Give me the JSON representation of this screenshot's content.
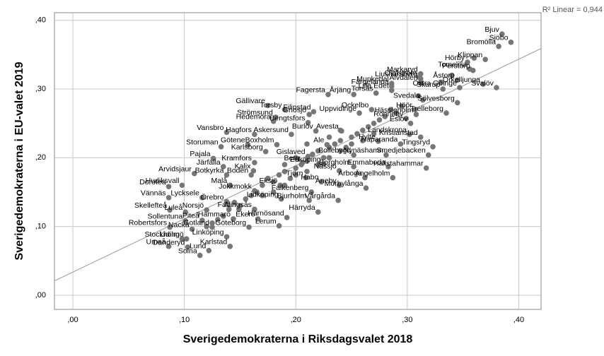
{
  "chart_data": {
    "type": "scatter",
    "xlabel": "Sverigedemokraterna i Riksdagsvalet 2018",
    "ylabel": "Sverigedemokraterna i EU-valet 2019",
    "annotation": "R² Linear = 0,944",
    "xlim": [
      -0.0165,
      0.42
    ],
    "ylim": [
      -0.0206,
      0.411
    ],
    "xticks": [
      {
        "value": 0,
        "label": ",00"
      },
      {
        "value": 0.1,
        "label": ",10"
      },
      {
        "value": 0.2,
        "label": ",20"
      },
      {
        "value": 0.3,
        "label": ",30"
      },
      {
        "value": 0.4,
        "label": ",40"
      }
    ],
    "yticks": [
      {
        "value": 0,
        "label": ",00"
      },
      {
        "value": 0.1,
        "label": ",10"
      },
      {
        "value": 0.2,
        "label": ",20"
      },
      {
        "value": 0.3,
        "label": ",30"
      },
      {
        "value": 0.4,
        "label": ",40"
      }
    ],
    "grid": true,
    "labels": [
      "Bjuv",
      "Sjöbo",
      "Bromölla",
      "Hörby",
      "Klippan",
      "Tomelilla",
      "Perstorp",
      "Markaryd",
      "Olofström",
      "Ljusnarsberg",
      "Munkedal",
      "Älvdalen",
      "Färgelanda",
      "Åstorp",
      "Örkelljunga",
      "Skurup",
      "Lilla Edet",
      "Svalöv",
      "Östra Göinge",
      "Fagersta",
      "Årjäng",
      "Torsås",
      "Svedala",
      "Sölvesborg",
      "Gällivare",
      "Torsby",
      "Ockelbo",
      "Filipstad",
      "Höör",
      "Hässleholm",
      "Trelleborg",
      "Strömsund",
      "Gnosjö",
      "Uppvidinge",
      "Hedemora",
      "Bengtsfors",
      "Eslöv",
      "Ronneby",
      "Vansbro",
      "Hagfors",
      "Askersund",
      "Burlöv",
      "Avesta",
      "Kristianstad",
      "Landskrona",
      "Hylte",
      "Ale",
      "Götene",
      "Boxholm",
      "Storuman",
      "Haparanda",
      "Tingsryd",
      "Karlsborg",
      "Bollebygd",
      "Nynäshamn",
      "Smedjebacken",
      "Pajala",
      "Gislaved",
      "Järfälla",
      "Kramfors",
      "Berg",
      "Enköping",
      "Borgholm",
      "Emmaboda",
      "Kalix",
      "Hallstahammar",
      "Arvidsjaur",
      "Botkyrka",
      "Boden",
      "Nässjö",
      "Tjörn",
      "Ängelholm",
      "Arboga",
      "Hudiksvall",
      "Malå",
      "Habo",
      "Aneby",
      "Eksjö",
      "Dorotea",
      "Mörbylånga",
      "Jokkmokk",
      "Falkenberg",
      "Vännäs",
      "Lycksele",
      "Lidköping",
      "Bjurholm",
      "Vårgårda",
      "Örebro",
      "Skellefteå",
      "Luleå",
      "Norsjö",
      "Falun",
      "Alingsås",
      "Härryda",
      "Sollentuna",
      "Piteå",
      "Hammarö",
      "Ekerö",
      "Härnösand",
      "Robertsfors",
      "Gotland",
      "Göteborg",
      "Lerum",
      "Nacka",
      "Stockholm",
      "Linköping",
      "Lidingö",
      "Karlstad",
      "Danderyd",
      "Lund",
      "Umeå",
      "Solna",
      null,
      null,
      null,
      null,
      null,
      null,
      null,
      null,
      null,
      null,
      null,
      null,
      null,
      null,
      null,
      null,
      null,
      null,
      null,
      null,
      null,
      null,
      null,
      null,
      null,
      null,
      null,
      null,
      null,
      null,
      null,
      null,
      null,
      null,
      null,
      null,
      null,
      null,
      null,
      null,
      null,
      null,
      null,
      null,
      null,
      null,
      null,
      null,
      null,
      null,
      null,
      null,
      null,
      null,
      null,
      null
    ],
    "x": [
      0.385,
      0.393,
      0.382,
      0.354,
      0.37,
      0.356,
      0.359,
      0.312,
      0.311,
      0.312,
      0.286,
      0.312,
      0.286,
      0.345,
      0.368,
      0.332,
      0.286,
      0.38,
      0.347,
      0.229,
      0.252,
      0.272,
      0.314,
      0.345,
      0.175,
      0.19,
      0.268,
      0.216,
      0.307,
      0.308,
      0.335,
      0.182,
      0.212,
      0.257,
      0.18,
      0.211,
      0.303,
      0.299,
      0.138,
      0.163,
      0.196,
      0.218,
      0.241,
      0.312,
      0.302,
      0.274,
      0.228,
      0.157,
      0.183,
      0.133,
      0.294,
      0.323,
      0.173,
      0.252,
      0.281,
      0.319,
      0.126,
      0.211,
      0.135,
      0.163,
      0.206,
      0.225,
      0.252,
      0.283,
      0.162,
      0.317,
      0.109,
      0.138,
      0.16,
      0.239,
      0.209,
      0.287,
      0.262,
      0.098,
      0.141,
      0.223,
      0.239,
      0.186,
      0.086,
      0.263,
      0.163,
      0.214,
      0.086,
      0.116,
      0.187,
      0.212,
      0.238,
      0.138,
      0.087,
      0.101,
      0.12,
      0.149,
      0.163,
      0.22,
      0.101,
      0.116,
      0.144,
      0.166,
      0.192,
      0.087,
      0.125,
      0.158,
      0.185,
      0.107,
      0.098,
      0.138,
      0.102,
      0.141,
      0.103,
      0.122,
      0.086,
      0.114,
      0.17,
      0.175,
      0.18,
      0.185,
      0.19,
      0.195,
      0.2,
      0.205,
      0.21,
      0.215,
      0.22,
      0.225,
      0.23,
      0.235,
      0.24,
      0.245,
      0.25,
      0.255,
      0.26,
      0.265,
      0.27,
      0.275,
      0.28,
      0.285,
      0.29,
      0.295,
      0.16,
      0.165,
      0.155,
      0.15,
      0.145,
      0.14,
      0.135,
      0.13,
      0.125,
      0.12,
      0.2,
      0.21,
      0.22,
      0.23,
      0.24,
      0.25,
      0.26,
      0.27,
      0.19,
      0.18,
      0.17,
      0.2,
      0.19,
      0.21,
      0.23,
      0.24,
      0.33,
      0.31,
      0.34,
      0.36
    ],
    "series": [
      {
        "color": "#767676",
        "values": [
          0.38,
          0.368,
          0.362,
          0.339,
          0.343,
          0.329,
          0.327,
          0.322,
          0.317,
          0.315,
          0.308,
          0.31,
          0.304,
          0.313,
          0.307,
          0.3,
          0.298,
          0.302,
          0.302,
          0.292,
          0.292,
          0.294,
          0.284,
          0.28,
          0.276,
          0.27,
          0.27,
          0.267,
          0.27,
          0.263,
          0.265,
          0.259,
          0.263,
          0.265,
          0.253,
          0.251,
          0.25,
          0.257,
          0.237,
          0.234,
          0.234,
          0.239,
          0.239,
          0.23,
          0.234,
          0.224,
          0.219,
          0.219,
          0.219,
          0.216,
          0.22,
          0.216,
          0.209,
          0.204,
          0.204,
          0.204,
          0.199,
          0.202,
          0.187,
          0.193,
          0.193,
          0.191,
          0.187,
          0.187,
          0.181,
          0.185,
          0.177,
          0.175,
          0.175,
          0.181,
          0.171,
          0.171,
          0.171,
          0.16,
          0.16,
          0.165,
          0.16,
          0.16,
          0.158,
          0.156,
          0.152,
          0.15,
          0.142,
          0.142,
          0.14,
          0.138,
          0.138,
          0.136,
          0.124,
          0.121,
          0.124,
          0.125,
          0.125,
          0.121,
          0.108,
          0.109,
          0.111,
          0.111,
          0.113,
          0.099,
          0.099,
          0.099,
          0.101,
          0.096,
          0.082,
          0.085,
          0.082,
          0.071,
          0.07,
          0.065,
          0.071,
          0.058,
          0.16,
          0.17,
          0.165,
          0.175,
          0.18,
          0.17,
          0.185,
          0.19,
          0.195,
          0.205,
          0.21,
          0.2,
          0.215,
          0.22,
          0.225,
          0.215,
          0.23,
          0.235,
          0.24,
          0.245,
          0.25,
          0.255,
          0.26,
          0.27,
          0.265,
          0.275,
          0.145,
          0.15,
          0.14,
          0.13,
          0.135,
          0.125,
          0.115,
          0.11,
          0.105,
          0.1,
          0.175,
          0.18,
          0.19,
          0.2,
          0.21,
          0.22,
          0.225,
          0.235,
          0.16,
          0.15,
          0.145,
          0.2,
          0.19,
          0.22,
          0.23,
          0.24,
          0.31,
          0.29,
          0.32,
          0.345
        ]
      }
    ]
  }
}
